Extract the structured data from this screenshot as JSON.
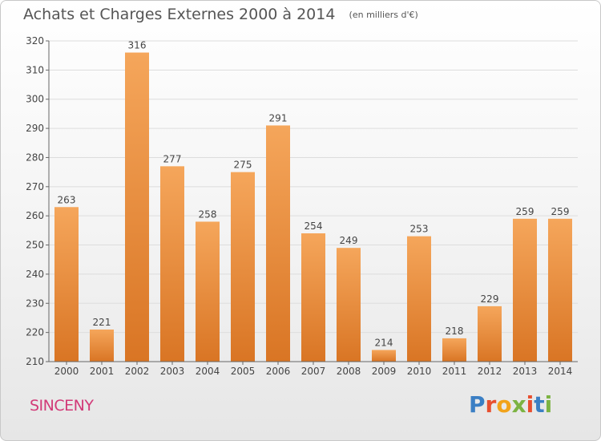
{
  "header": {
    "title": "Achats et Charges Externes 2000 à 2014",
    "unit": "(en milliers d'€)"
  },
  "footer": {
    "commune": "SINCENY",
    "logo_text": "Proxiti",
    "logo_colors": [
      "#3b7fc4",
      "#e84f2f",
      "#f2a31b",
      "#7cb342",
      "#e84f2f",
      "#3b7fc4",
      "#7cb342"
    ]
  },
  "colors": {
    "bar_light": "#f5a65b",
    "bar_dark": "#d97524",
    "grid": "#dddddd",
    "axis": "#666666",
    "commune": "#d23a78"
  },
  "chart_data": {
    "type": "bar",
    "categories": [
      "2000",
      "2001",
      "2002",
      "2003",
      "2004",
      "2005",
      "2006",
      "2007",
      "2008",
      "2009",
      "2010",
      "2011",
      "2012",
      "2013",
      "2014"
    ],
    "values": [
      263,
      221,
      316,
      277,
      258,
      275,
      291,
      254,
      249,
      214,
      253,
      218,
      229,
      259,
      259
    ],
    "ylim": [
      210,
      320
    ],
    "yticks": [
      210,
      220,
      230,
      240,
      250,
      260,
      270,
      280,
      290,
      300,
      310,
      320
    ],
    "grid": true,
    "legend": "none"
  }
}
